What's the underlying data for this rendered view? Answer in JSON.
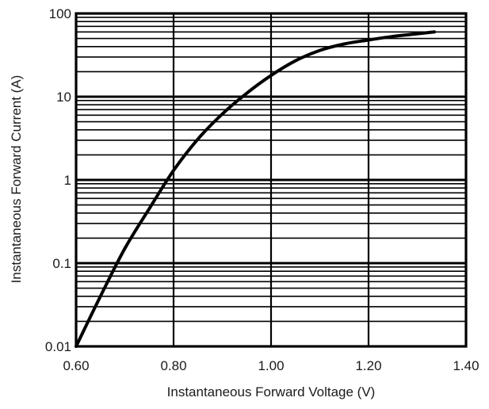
{
  "chart_data": {
    "type": "line",
    "title": "",
    "xlabel": "Instantaneous Forward Voltage (V)",
    "ylabel": "Instantaneous Forward Current (A)",
    "xscale": "linear",
    "yscale": "log",
    "xlim": [
      0.6,
      1.4
    ],
    "ylim": [
      0.01,
      100
    ],
    "xticks": [
      0.6,
      0.8,
      1.0,
      1.2,
      1.4
    ],
    "xtick_labels": [
      "0.60",
      "0.80",
      "1.00",
      "1.20",
      "1.40"
    ],
    "yticks": [
      0.01,
      0.1,
      1,
      10,
      100
    ],
    "ytick_labels": [
      "0.01",
      "0.1",
      "1",
      "10",
      "100"
    ],
    "grid": true,
    "legend": "none",
    "colors": {
      "line": "#000000",
      "grid": "#000000",
      "text": "#1a1a1a"
    },
    "series": [
      {
        "x": [
          0.6,
          0.65,
          0.7,
          0.75,
          0.8,
          0.85,
          0.9,
          0.95,
          1.0,
          1.05,
          1.1,
          1.15,
          1.2,
          1.25,
          1.3,
          1.335
        ],
        "y": [
          0.01,
          0.04,
          0.15,
          0.45,
          1.3,
          3.1,
          6.2,
          11,
          18,
          27,
          36,
          43,
          48,
          53,
          57,
          60
        ]
      }
    ]
  }
}
